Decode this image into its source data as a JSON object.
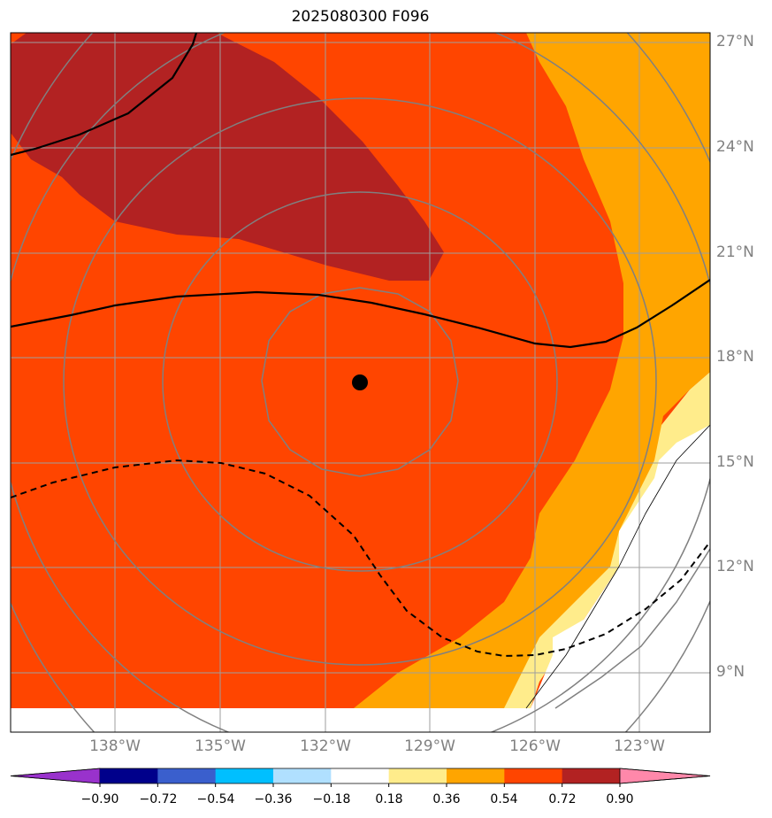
{
  "title": "2025080300 F096",
  "lat_labels": [
    "27°N",
    "24°N",
    "21°N",
    "18°N",
    "15°N",
    "12°N",
    "9°N"
  ],
  "lon_labels": [
    "138°W",
    "135°W",
    "132°W",
    "129°W",
    "126°W",
    "123°W"
  ],
  "colorbar": {
    "tick_labels": [
      "−0.90",
      "−0.72",
      "−0.54",
      "−0.36",
      "−0.18",
      "0.18",
      "0.36",
      "0.54",
      "0.72",
      "0.90"
    ],
    "colors": [
      "#9932cc",
      "#00008b",
      "#3a5fcd",
      "#00bfff",
      "#b0e0ff",
      "#ffffff",
      "#ffec8b",
      "#ffa500",
      "#ff4500",
      "#b22222",
      "#ff88aa"
    ]
  },
  "fill_colors": {
    "level_036_054": "#ffa500",
    "level_054_072": "#ff4500",
    "level_072_090": "#b22222",
    "level_018_036": "#ffec8b"
  },
  "center_marker": {
    "lat": 17.3,
    "lon": -131
  },
  "icons": {
    "center": "storm-center-dot"
  }
}
